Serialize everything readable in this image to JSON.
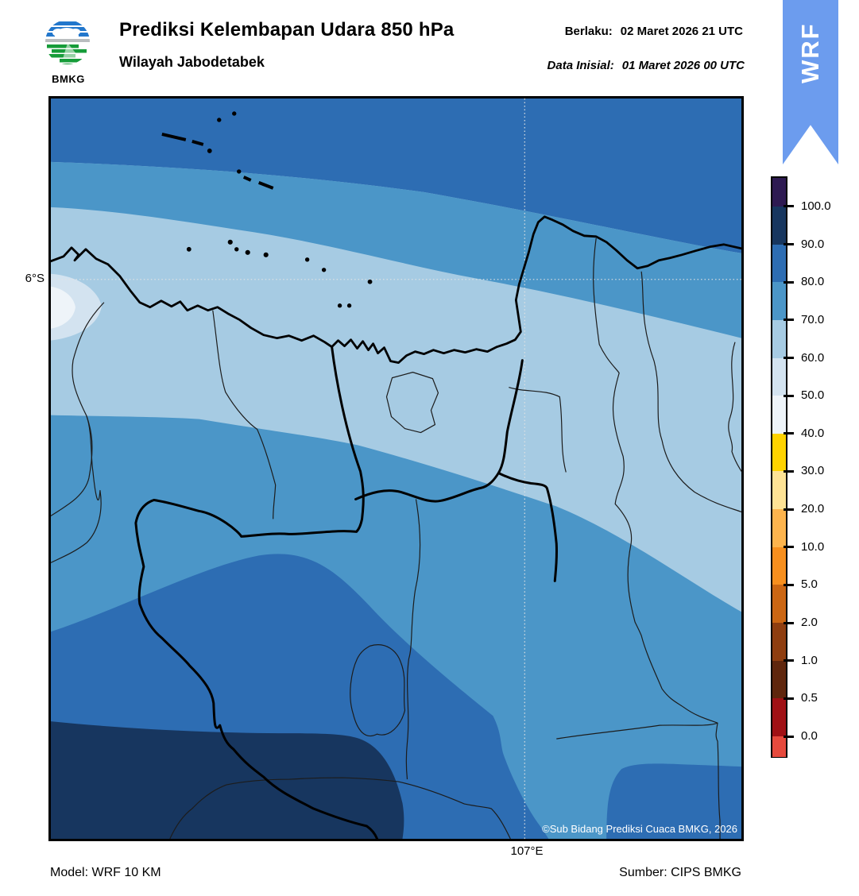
{
  "header": {
    "logo_text": "BMKG",
    "title": "Prediksi Kelembapan Udara 850 hPa",
    "subtitle": "Wilayah Jabodetabek",
    "valid_label": "Berlaku:",
    "valid_value": "02 Maret 2026 21 UTC",
    "init_label": "Data Inisial:",
    "init_value": "01 Maret 2026 00 UTC",
    "ribbon_label": "WRF",
    "ribbon_color": "#6c9cee"
  },
  "map": {
    "lat_label": "6°S",
    "lon_label": "107°E",
    "copyright": "©Sub Bidang Prediksi Cuaca BMKG, 2026",
    "band_colors": {
      "b40": "#eef4f9",
      "b50": "#d3e3f0",
      "b60": "#a6cbe3",
      "b70": "#4b96c8",
      "b80": "#2d6db3",
      "b90": "#17365f"
    }
  },
  "colorbar": {
    "tick_labels": [
      "100.0",
      "90.0",
      "80.0",
      "70.0",
      "60.0",
      "50.0",
      "40.0",
      "30.0",
      "20.0",
      "10.0",
      "5.0",
      "2.0",
      "1.0",
      "0.5",
      "0.0"
    ],
    "segment_colors": [
      "#2e1a52",
      "#17365f",
      "#2d6db3",
      "#4b96c8",
      "#a6cbe3",
      "#d3e3f0",
      "#eef4f9",
      "#ffd300",
      "#fee395",
      "#fdb44d",
      "#f78f1e",
      "#cb6613",
      "#8f3e10",
      "#5f260d",
      "#a01115",
      "#e64a3d"
    ],
    "segment_weights": [
      36,
      47.8,
      47.8,
      47.8,
      47.8,
      47.8,
      47.8,
      47.8,
      47.8,
      47.8,
      47.8,
      47.8,
      47.8,
      47.8,
      47.8,
      25
    ]
  },
  "footer": {
    "model": "Model: WRF 10 KM",
    "source": "Sumber: CIPS BMKG"
  }
}
